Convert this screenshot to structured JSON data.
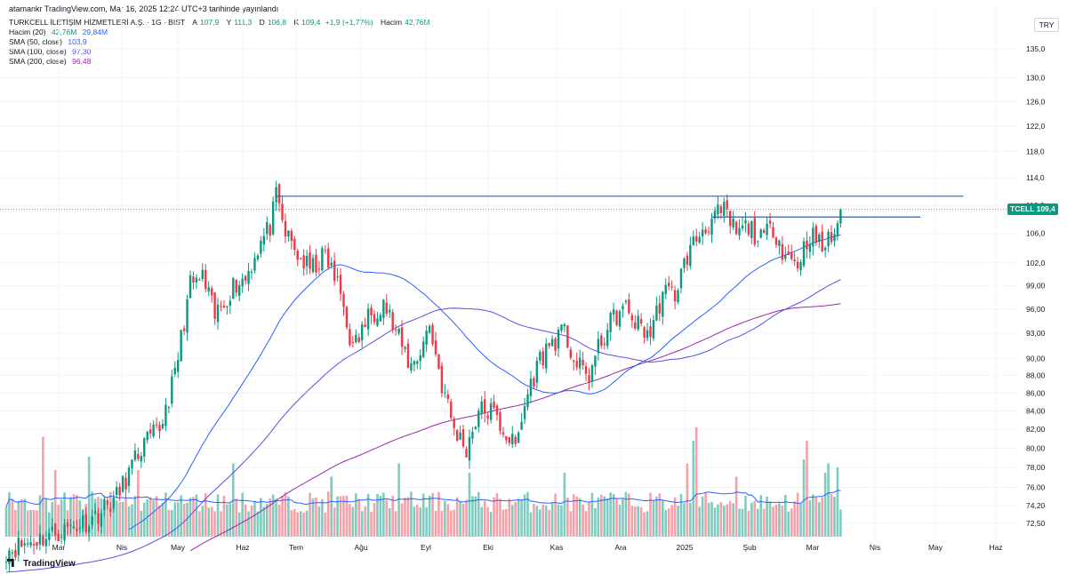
{
  "header": {
    "published_text": "atamankr TradingView.com, Mar 16, 2025 12:24 UTC+3 tarihinde yayınlandı"
  },
  "symbol": {
    "title": "TURKCELL İLETİŞİM HİZMETLERİ A.Ş. · 1G · BIST",
    "ohlc": [
      {
        "key": "A",
        "value": "107,9"
      },
      {
        "key": "Y",
        "value": "111,3"
      },
      {
        "key": "D",
        "value": "106,8"
      },
      {
        "key": "K",
        "value": "109,4"
      }
    ],
    "change": "+1,9 (+1,77%)",
    "volume_label": "Hacim",
    "volume_value": "42,76M"
  },
  "indicators": [
    {
      "label": "Hacim (20)",
      "values": [
        "42,76M",
        "29,84M"
      ],
      "colors": [
        "#089981",
        "#2962ff"
      ]
    },
    {
      "label": "SMA (50, close)",
      "values": [
        "103,9"
      ],
      "colors": [
        "#2962ff"
      ]
    },
    {
      "label": "SMA (100, close)",
      "values": [
        "97,30"
      ],
      "colors": [
        "#5b4ee6"
      ]
    },
    {
      "label": "SMA (200, close)",
      "values": [
        "96,48"
      ],
      "colors": [
        "#9c27b0"
      ]
    }
  ],
  "currency": "TRY",
  "price_tag": {
    "ticker": "TCELL",
    "value": "109,4"
  },
  "footer": {
    "brand": "TradingView"
  },
  "colors": {
    "up": "#089981",
    "down": "#f23645",
    "vol_up": "#7fcbc0",
    "vol_down": "#f6a1a8",
    "vol_ma": "#2962ff",
    "sma50": "#2962ff",
    "sma100": "#5b4ee6",
    "sma200": "#9c27b0",
    "hline": "#3a5f9a",
    "grid": "#f0f3fa"
  },
  "chart_data": {
    "type": "candlestick",
    "title": "TURKCELL İLETİŞİM HİZMETLERİ A.Ş. · 1G · BIST",
    "y_scale": "log",
    "y_ticks": [
      "135,0",
      "130,0",
      "126,0",
      "122,0",
      "118,0",
      "114,0",
      "110,0",
      "106,0",
      "102,0",
      "99,00",
      "96,00",
      "93,00",
      "90,00",
      "88,00",
      "86,00",
      "84,00",
      "82,00",
      "80,00",
      "78,00",
      "76,00",
      "74,20",
      "72,50"
    ],
    "x_ticks": [
      "Mar",
      "Nis",
      "May",
      "Haz",
      "Tem",
      "Ağu",
      "Eyl",
      "Eki",
      "Kas",
      "Ara",
      "2025",
      "Şub",
      "Mar",
      "Nis",
      "May",
      "Haz"
    ],
    "last_price": 109.4,
    "grid": true,
    "price_anchors": [
      [
        0,
        70
      ],
      [
        20,
        72
      ],
      [
        28,
        73
      ],
      [
        36,
        75
      ],
      [
        44,
        80
      ],
      [
        50,
        82
      ],
      [
        55,
        88
      ],
      [
        60,
        99
      ],
      [
        64,
        100
      ],
      [
        68,
        95
      ],
      [
        74,
        99
      ],
      [
        78,
        100
      ],
      [
        82,
        104
      ],
      [
        86,
        107
      ],
      [
        88,
        111
      ],
      [
        91,
        106
      ],
      [
        95,
        103
      ],
      [
        99,
        101
      ],
      [
        104,
        103
      ],
      [
        109,
        98
      ],
      [
        113,
        91
      ],
      [
        118,
        95
      ],
      [
        123,
        97
      ],
      [
        127,
        93
      ],
      [
        132,
        89
      ],
      [
        135,
        91
      ],
      [
        138,
        94
      ],
      [
        142,
        87
      ],
      [
        146,
        82
      ],
      [
        150,
        80
      ],
      [
        154,
        84
      ],
      [
        158,
        84
      ],
      [
        162,
        82
      ],
      [
        166,
        80
      ],
      [
        170,
        86
      ],
      [
        174,
        90
      ],
      [
        178,
        92
      ],
      [
        182,
        93
      ],
      [
        186,
        89
      ],
      [
        190,
        88
      ],
      [
        194,
        92
      ],
      [
        198,
        95
      ],
      [
        202,
        96
      ],
      [
        206,
        94
      ],
      [
        210,
        93
      ],
      [
        214,
        98
      ],
      [
        218,
        98
      ],
      [
        222,
        103
      ],
      [
        226,
        106
      ],
      [
        230,
        108
      ],
      [
        234,
        109
      ],
      [
        238,
        106
      ],
      [
        242,
        107
      ],
      [
        246,
        105
      ],
      [
        250,
        107
      ],
      [
        254,
        103
      ],
      [
        258,
        102
      ],
      [
        262,
        106
      ],
      [
        266,
        104
      ],
      [
        270,
        106
      ],
      [
        272,
        109.4
      ]
    ],
    "volume_spikes": [
      [
        12,
        0.75
      ],
      [
        16,
        0.5
      ],
      [
        27,
        0.6
      ],
      [
        43,
        0.5
      ],
      [
        74,
        0.55
      ],
      [
        106,
        0.45
      ],
      [
        128,
        0.55
      ],
      [
        151,
        0.48
      ],
      [
        182,
        0.48
      ],
      [
        222,
        0.55
      ],
      [
        224,
        0.72
      ],
      [
        225,
        0.82
      ],
      [
        238,
        0.45
      ],
      [
        260,
        0.58
      ],
      [
        261,
        0.72
      ],
      [
        267,
        0.48
      ],
      [
        268,
        0.55
      ],
      [
        271,
        0.52
      ]
    ],
    "horizontal_lines": [
      {
        "price": 111.3,
        "from_bar": 88,
        "to_bar": 312
      },
      {
        "price": 108.3,
        "from_bar": 230,
        "to_bar": 298
      }
    ],
    "sma_periods": [
      50,
      100,
      200
    ]
  }
}
